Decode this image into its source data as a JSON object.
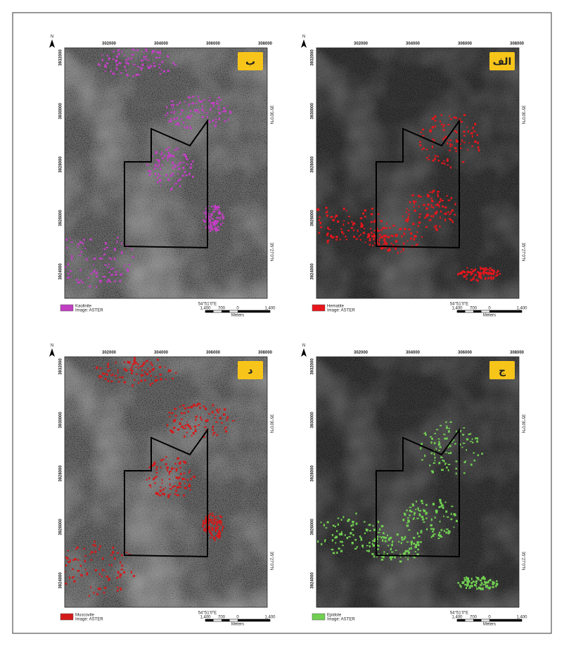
{
  "figure": {
    "north": "N",
    "x_ticks": [
      302000,
      304000,
      306000,
      308000
    ],
    "y_ticks": [
      3932000,
      3930000,
      3928000,
      3926000,
      3924000
    ],
    "lat_labels": [
      "35°30'0\"N",
      "35°27'0\"N"
    ],
    "lon_label": "54°51'0\"E",
    "scale_bar": {
      "labels": [
        "1,400",
        "700",
        "0",
        "1,400"
      ],
      "unit": "Meters"
    },
    "panels": [
      {
        "label": "ب",
        "mineral": "Kaolinite",
        "source": "Image: ASTER",
        "color": "#c23fc4"
      },
      {
        "label": "الف",
        "mineral": "Hematite",
        "source": "Image: ASTER",
        "color": "#e8161c"
      },
      {
        "label": "د",
        "mineral": "Muscovite",
        "source": "Image: ASTER",
        "color": "#d41a1a"
      },
      {
        "label": "ج",
        "mineral": "Epidote",
        "source": "Image: ASTER",
        "color": "#72cf52"
      }
    ]
  }
}
